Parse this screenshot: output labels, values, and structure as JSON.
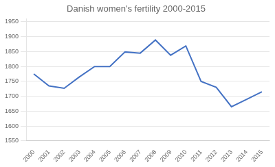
{
  "chart_data": {
    "type": "line",
    "title": "Danish women's fertility 2000-2015",
    "categories": [
      "2000",
      "2001",
      "2002",
      "2003",
      "2004",
      "2005",
      "2006",
      "2007",
      "2008",
      "2009",
      "2010",
      "2011",
      "2012",
      "2013",
      "2014",
      "2015"
    ],
    "values": [
      1775,
      1735,
      1727,
      1765,
      1800,
      1800,
      1849,
      1845,
      1889,
      1838,
      1869,
      1750,
      1730,
      1665,
      1690,
      1715
    ],
    "color": "#4472c4",
    "ylim": [
      1550,
      1960
    ],
    "yticks": [
      1550,
      1600,
      1650,
      1700,
      1750,
      1800,
      1850,
      1900,
      1950
    ],
    "grid": true
  }
}
